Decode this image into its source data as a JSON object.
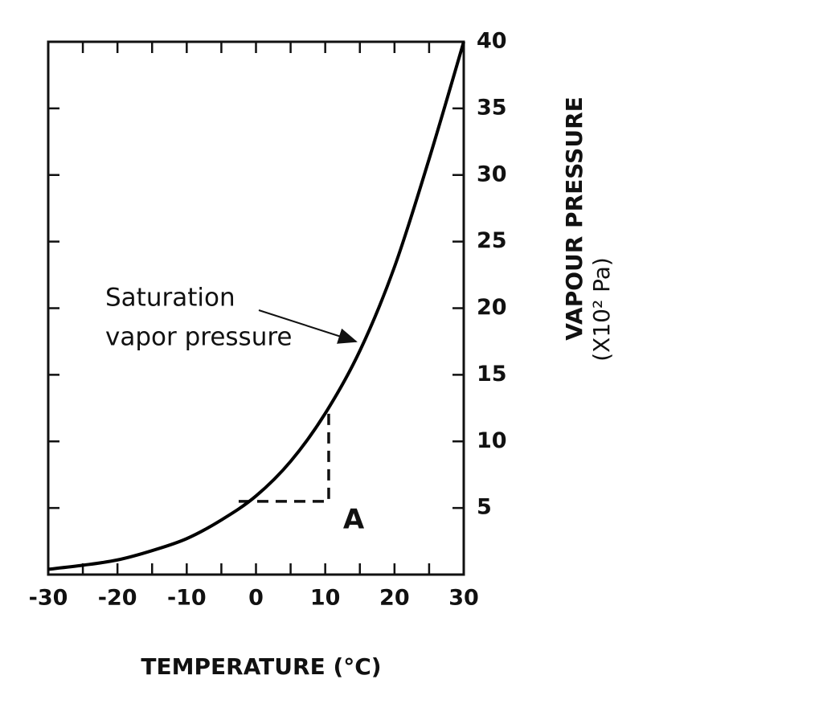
{
  "chart_data": {
    "type": "line",
    "x_label": "TEMPERATURE (°C)",
    "y_label": "VAPOUR PRESSURE",
    "y_label_unit": "(X10² Pa)",
    "annotation": "Saturation",
    "annotation_line2": "vapor pressure",
    "point_label": "A",
    "x": [
      -30,
      -25,
      -20,
      -15,
      -10,
      -5,
      0,
      5,
      10,
      15,
      20,
      25,
      30
    ],
    "series": [
      {
        "name": "Saturation vapor pressure",
        "color": "#000000",
        "values": [
          0.4,
          0.7,
          1.1,
          1.8,
          2.7,
          4.1,
          5.9,
          8.5,
          12.1,
          16.8,
          23.1,
          31.2,
          40
        ]
      }
    ],
    "guide": {
      "x": [
        -2.5,
        10.5,
        10.5
      ],
      "y": [
        5.5,
        5.5,
        12.5
      ]
    },
    "xlim": [
      -30,
      30
    ],
    "ylim": [
      0,
      40
    ],
    "xticks": [
      -30,
      -20,
      -10,
      0,
      10,
      20,
      30
    ],
    "xminorticks": [
      -25,
      -15,
      -5,
      5,
      15,
      25
    ],
    "yticks": [
      5,
      10,
      15,
      20,
      25,
      30,
      35,
      40
    ]
  }
}
